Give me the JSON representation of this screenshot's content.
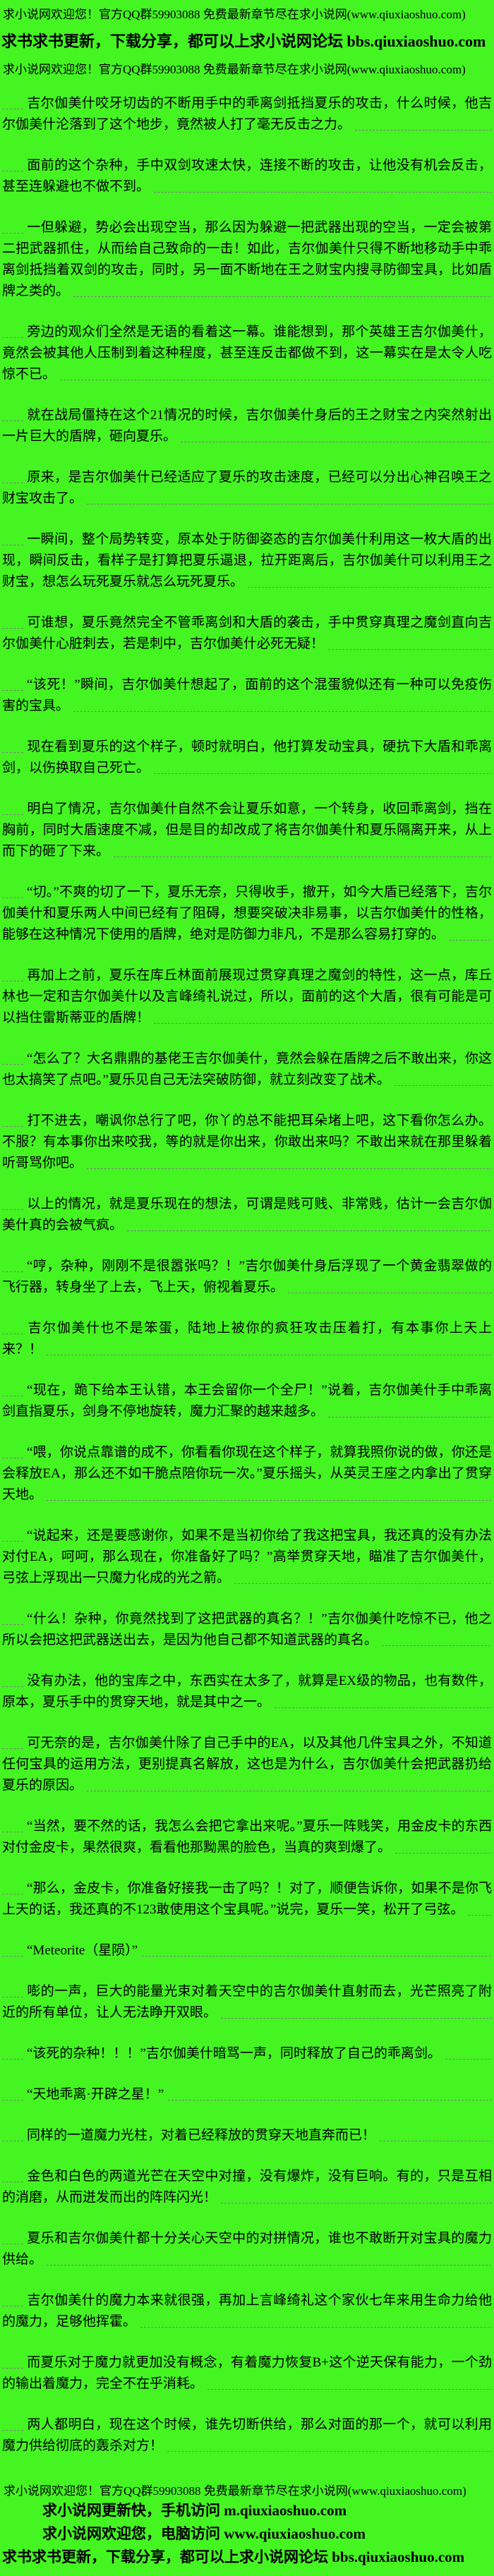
{
  "colors": {
    "background": "#44f522",
    "text": "#000000",
    "dash_line": "#7e7e7e"
  },
  "header": {
    "line1": "求小说网欢迎您！官方QQ群59903088 免费最新章节尽在求小说网(www.qiuxiaoshuo.com)",
    "line2": "求书求书更新，下载分享，都可以上求小说网论坛 bbs.qiuxiaoshuo.com",
    "line3": "求小说网欢迎您！官方QQ群59903088 免费最新章节尽在求小说网(www.qiuxiaoshuo.com)"
  },
  "paragraphs": [
    "吉尔伽美什咬牙切齿的不断用手中的乖离剑抵挡夏乐的攻击，什么时候，他吉尔伽美什沦落到了这个地步，竟然被人打了毫无反击之力。",
    "面前的这个杂种，手中双剑攻速太快，连接不断的攻击，让他没有机会反击，甚至连躲避也不做不到。",
    "一但躲避，势必会出现空当，那么因为躲避一把武器出现的空当，一定会被第二把武器抓住，从而给自己致命的一击！如此，吉尔伽美什只得不断地移动手中乖离剑抵挡着双剑的攻击，同时，另一面不断地在王之财宝内搜寻防御宝具，比如盾牌之类的。",
    "旁边的观众们全然是无语的看着这一幕。谁能想到，那个英雄王吉尔伽美什，竟然会被其他人压制到着这种程度，甚至连反击都做不到，这一幕实在是太令人吃惊不已。",
    "就在战局僵持在这个21情况的时候，吉尔伽美什身后的王之财宝之内突然射出一片巨大的盾牌，砸向夏乐。",
    "原来，是吉尔伽美什已经适应了夏乐的攻击速度，已经可以分出心神召唤王之财宝攻击了。",
    "一瞬间，整个局势转变，原本处于防御姿态的吉尔伽美什利用这一枚大盾的出现，瞬间反击，看样子是打算把夏乐逼退，拉开距离后，吉尔伽美什可以利用王之财宝，想怎么玩死夏乐就怎么玩死夏乐。",
    "可谁想，夏乐竟然完全不管乖离剑和大盾的袭击，手中贯穿真理之魔剑直向吉尔伽美什心脏刺去，若是刺中，吉尔伽美什必死无疑！",
    "“该死！”瞬间，吉尔伽美什想起了，面前的这个混蛋貌似还有一种可以免疫伤害的宝具。",
    "现在看到夏乐的这个样子，顿时就明白，他打算发动宝具，硬抗下大盾和乖离剑，以伤换取自己死亡。",
    "明白了情况，吉尔伽美什自然不会让夏乐如意，一个转身，收回乖离剑，挡在胸前，同时大盾速度不减，但是目的却改成了将吉尔伽美什和夏乐隔离开来，从上而下的砸了下来。",
    "“切。”不爽的切了一下，夏乐无奈，只得收手，撤开，如今大盾已经落下，吉尔伽美什和夏乐两人中间已经有了阻碍，想要突破决非易事，以吉尔伽美什的性格，能够在这种情况下使用的盾牌，绝对是防御力非凡，不是那么容易打穿的。",
    "再加上之前，夏乐在库丘林面前展现过贯穿真理之魔剑的特性，这一点，库丘林也一定和吉尔伽美什以及言峰绮礼说过，所以，面前的这个大盾，很有可能是可以挡住雷斯蒂亚的盾牌！",
    "“怎么了？大名鼎鼎的基佬王吉尔伽美什，竟然会躲在盾牌之后不敢出来，你这也太搞笑了点吧。”夏乐见自己无法突破防御，就立刻改变了战术。",
    "打不进去，嘲讽你总行了吧，你丫的总不能把耳朵堵上吧，这下看你怎么办。不服？有本事你出来咬我，等的就是你出来，你敢出来吗？不敢出来就在那里躲着听哥骂你吧。",
    "以上的情况，就是夏乐现在的想法，可谓是贱可贱、非常贱，估计一会吉尔伽美什真的会被气疯。",
    "“哼，杂种，刚刚不是很嚣张吗？！”吉尔伽美什身后浮现了一个黄金翡翠做的飞行器，转身坐了上去，飞上天，俯视着夏乐。",
    "吉尔伽美什也不是笨蛋，陆地上被你的疯狂攻击压着打，有本事你上天上来？！",
    "“现在，跪下给本王认错，本王会留你一个全尸！”说着，吉尔伽美什手中乖离剑直指夏乐，剑身不停地旋转，魔力汇聚的越来越多。",
    "“喂，你说点靠谱的成不，你看看你现在这个样子，就算我照你说的做，你还是会释放EA，那么还不如干脆点陪你玩一次。”夏乐摇头，从英灵王座之内拿出了贯穿天地。",
    "“说起来，还是要感谢你，如果不是当初你给了我这把宝具，我还真的没有办法对付EA，呵呵，那么现在，你准备好了吗？”高举贯穿天地，瞄准了吉尔伽美什，弓弦上浮现出一只魔力化成的光之箭。",
    "“什么！杂种，你竟然找到了这把武器的真名？！”吉尔伽美什吃惊不已，他之所以会把这把武器送出去，是因为他自己都不知道武器的真名。",
    "没有办法，他的宝库之中，东西实在太多了，就算是EX级的物品，也有数件，原本，夏乐手中的贯穿天地，就是其中之一。",
    "可无奈的是，吉尔伽美什除了自己手中的EA，以及其他几件宝具之外，不知道任何宝具的运用方法，更别提真名解放，这也是为什么，吉尔伽美什会把武器扔给夏乐的原因。",
    "“当然，要不然的话，我怎么会把它拿出来呢。”夏乐一阵贱笑，用金皮卡的东西对付金皮卡，果然很爽，看看他那黝黑的脸色，当真的爽到爆了。",
    "“那么，金皮卡，你准备好接我一击了吗？！对了，顺便告诉你，如果不是你飞上天的话，我还真的不123敢使用这个宝具呢。”说完，夏乐一笑，松开了弓弦。",
    "“Meteorite（星陨）”",
    "嘭的一声，巨大的能量光束对着天空中的吉尔伽美什直射而去，光芒照亮了附近的所有单位，让人无法睁开双眼。",
    "“该死的杂种！！！”吉尔伽美什暗骂一声，同时释放了自己的乖离剑。",
    "“天地乖离·开辟之星！”",
    "同样的一道魔力光柱，对着已经释放的贯穿天地直奔而已！",
    "金色和白色的两道光芒在天空中对撞，没有爆炸，没有巨响。有的，只是互相的消磨，从而迸发而出的阵阵闪光！",
    "夏乐和吉尔伽美什都十分关心天空中的对拼情况，谁也不敢断开对宝具的魔力供给。",
    "吉尔伽美什的魔力本来就很强，再加上言峰绮礼这个家伙七年来用生命力给他的魔力，足够他挥霍。",
    "而夏乐对于魔力就更加没有概念，有着魔力恢复B+这个逆天保有能力，一个劲的输出着魔力，完全不在乎消耗。",
    "两人都明白，现在这个时候，谁先切断供给，那么对面的那一个，就可以利用魔力供给彻底的轰杀对方！"
  ],
  "footer": {
    "line1": "求小说网欢迎您！官方QQ群59903088 免费最新章节尽在求小说网(www.qiuxiaoshuo.com)",
    "line2": "求小说网更新快，手机访问 m.qiuxiaoshuo.com",
    "line3": "求小说网欢迎您，电脑访问 www.qiuxiaoshuo.com",
    "line4": "求书求书更新，下载分享，都可以上求小说网论坛 bbs.qiuxiaoshuo.com"
  }
}
